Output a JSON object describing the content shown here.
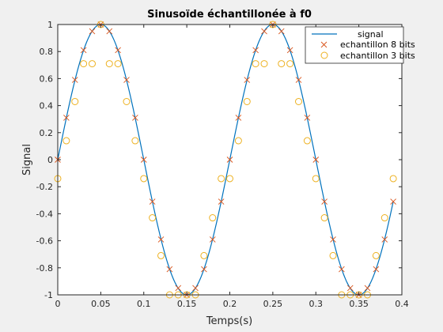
{
  "chart_data": {
    "type": "line",
    "title": "Sinusoïde échantillonée à f0",
    "xlabel": "Temps(s)",
    "ylabel": "Signal",
    "xlim": [
      0,
      0.4
    ],
    "ylim": [
      -1,
      1
    ],
    "x_ticks": [
      "0",
      "0.05",
      "0.1",
      "0.15",
      "0.2",
      "0.25",
      "0.3",
      "0.35",
      "0.4"
    ],
    "y_ticks": [
      "1",
      "0.8",
      "0.6",
      "0.4",
      "0.2",
      "0",
      "-0.2",
      "-0.4",
      "-0.6",
      "-0.8",
      "-1"
    ],
    "grid": false,
    "legend_position": "top-right",
    "series": [
      {
        "name": "signal",
        "style": "line",
        "color": "#0072BD",
        "frequency": 5,
        "x_start": 0,
        "x_end": 0.39
      },
      {
        "name": "echantillon 8 bits",
        "style": "x-marker",
        "color": "#D95319",
        "x": [
          0,
          0.01,
          0.02,
          0.03,
          0.04,
          0.05,
          0.06,
          0.07,
          0.08,
          0.09,
          0.1,
          0.11,
          0.12,
          0.13,
          0.14,
          0.15,
          0.16,
          0.17,
          0.18,
          0.19,
          0.2,
          0.21,
          0.22,
          0.23,
          0.24,
          0.25,
          0.26,
          0.27,
          0.28,
          0.29,
          0.3,
          0.31,
          0.32,
          0.33,
          0.34,
          0.35,
          0.36,
          0.37,
          0.38,
          0.39
        ],
        "y": [
          0,
          0.31,
          0.59,
          0.81,
          0.95,
          1,
          0.95,
          0.81,
          0.59,
          0.31,
          0,
          -0.31,
          -0.59,
          -0.81,
          -0.95,
          -1,
          -0.95,
          -0.81,
          -0.59,
          -0.31,
          0,
          0.31,
          0.59,
          0.81,
          0.95,
          1,
          0.95,
          0.81,
          0.59,
          0.31,
          0,
          -0.31,
          -0.59,
          -0.81,
          -0.95,
          -1,
          -0.95,
          -0.81,
          -0.59,
          -0.31
        ]
      },
      {
        "name": "echantillon 3 bits",
        "style": "o-marker",
        "color": "#EDB120",
        "x": [
          0,
          0.01,
          0.02,
          0.03,
          0.04,
          0.05,
          0.06,
          0.07,
          0.08,
          0.09,
          0.1,
          0.11,
          0.12,
          0.13,
          0.14,
          0.15,
          0.16,
          0.17,
          0.18,
          0.19,
          0.2,
          0.21,
          0.22,
          0.23,
          0.24,
          0.25,
          0.26,
          0.27,
          0.28,
          0.29,
          0.3,
          0.31,
          0.32,
          0.33,
          0.34,
          0.35,
          0.36,
          0.37,
          0.38,
          0.39
        ],
        "y": [
          -0.14,
          0.14,
          0.43,
          0.71,
          0.71,
          1,
          0.71,
          0.71,
          0.43,
          0.14,
          -0.14,
          -0.43,
          -0.71,
          -1,
          -1,
          -1,
          -1,
          -0.71,
          -0.43,
          -0.14,
          -0.14,
          0.14,
          0.43,
          0.71,
          0.71,
          1,
          0.71,
          0.71,
          0.43,
          0.14,
          -0.14,
          -0.43,
          -0.71,
          -1,
          -1,
          -1,
          -1,
          -0.71,
          -0.43,
          -0.14
        ]
      }
    ]
  }
}
